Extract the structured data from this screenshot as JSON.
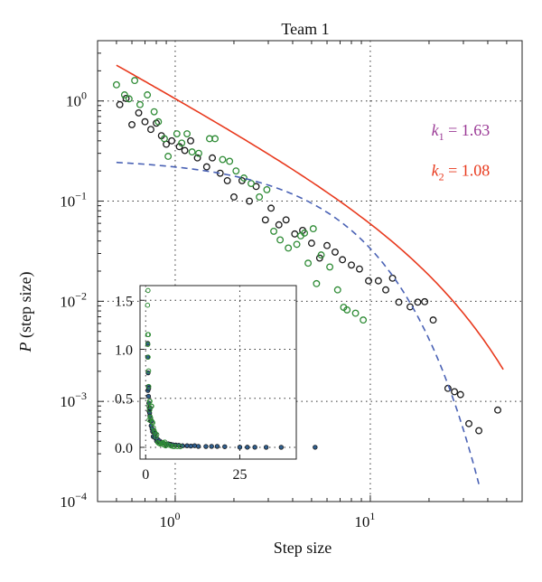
{
  "chart_data": {
    "type": "scatter",
    "title": "Team 1",
    "xlabel": "Step size",
    "ylabel_italic": "P",
    "ylabel_rest": " (step size)",
    "xscale": "log",
    "yscale": "log",
    "xlim": [
      0.4,
      60
    ],
    "ylim": [
      0.0001,
      4
    ],
    "grid": "dotted at major ticks",
    "x_ticks": [
      {
        "value": 1,
        "base": "10",
        "exp": "0"
      },
      {
        "value": 10,
        "base": "10",
        "exp": "1"
      }
    ],
    "y_ticks": [
      {
        "value": 1,
        "base": "10",
        "exp": "0"
      },
      {
        "value": 0.1,
        "base": "10",
        "exp": "−1"
      },
      {
        "value": 0.01,
        "base": "10",
        "exp": "−2"
      },
      {
        "value": 0.001,
        "base": "10",
        "exp": "−3"
      },
      {
        "value": 0.0001,
        "base": "10",
        "exp": "−4"
      }
    ],
    "annotations": [
      {
        "k": "k",
        "sub": "1",
        "rest": " = 1.63",
        "color": "#9b3a96",
        "anchor_x": 41,
        "anchor_y": 0.45
      },
      {
        "k": "k",
        "sub": "2",
        "rest": " = 1.08",
        "color": "#e8391d",
        "anchor_x": 41,
        "anchor_y": 0.18
      }
    ],
    "series": [
      {
        "marker": "open-circle",
        "color": "#1a1a1a",
        "points": [
          [
            0.52,
            0.92
          ],
          [
            0.56,
            1.06
          ],
          [
            0.6,
            0.58
          ],
          [
            0.65,
            0.76
          ],
          [
            0.7,
            0.62
          ],
          [
            0.75,
            0.52
          ],
          [
            0.8,
            0.6
          ],
          [
            0.85,
            0.45
          ],
          [
            0.9,
            0.37
          ],
          [
            0.96,
            0.4
          ],
          [
            1.05,
            0.35
          ],
          [
            1.12,
            0.32
          ],
          [
            1.2,
            0.4
          ],
          [
            1.3,
            0.27
          ],
          [
            1.45,
            0.22
          ],
          [
            1.55,
            0.27
          ],
          [
            1.7,
            0.19
          ],
          [
            1.85,
            0.16
          ],
          [
            2.0,
            0.11
          ],
          [
            2.2,
            0.16
          ],
          [
            2.4,
            0.1
          ],
          [
            2.6,
            0.14
          ],
          [
            2.9,
            0.065
          ],
          [
            3.1,
            0.085
          ],
          [
            3.4,
            0.058
          ],
          [
            3.7,
            0.065
          ],
          [
            4.1,
            0.047
          ],
          [
            4.5,
            0.051
          ],
          [
            5.0,
            0.038
          ],
          [
            5.5,
            0.027
          ],
          [
            6.0,
            0.036
          ],
          [
            6.6,
            0.031
          ],
          [
            7.2,
            0.026
          ],
          [
            8.0,
            0.023
          ],
          [
            8.8,
            0.021
          ],
          [
            9.8,
            0.016
          ],
          [
            11.0,
            0.016
          ],
          [
            12.0,
            0.013
          ],
          [
            13.0,
            0.017
          ],
          [
            14.0,
            0.0098
          ],
          [
            16.0,
            0.0088
          ],
          [
            17.5,
            0.0098
          ],
          [
            19.0,
            0.0099
          ],
          [
            21.0,
            0.0065
          ],
          [
            25.0,
            0.00135
          ],
          [
            27.0,
            0.00125
          ],
          [
            29.0,
            0.00117
          ],
          [
            32.0,
            0.0006
          ],
          [
            36.0,
            0.00051
          ],
          [
            45.0,
            0.00082
          ]
        ]
      },
      {
        "marker": "open-circle",
        "color": "#2e8b35",
        "points": [
          [
            0.5,
            1.45
          ],
          [
            0.55,
            1.15
          ],
          [
            0.58,
            1.05
          ],
          [
            0.62,
            1.6
          ],
          [
            0.66,
            0.92
          ],
          [
            0.72,
            1.15
          ],
          [
            0.78,
            0.78
          ],
          [
            0.82,
            0.62
          ],
          [
            0.88,
            0.42
          ],
          [
            0.92,
            0.28
          ],
          [
            1.02,
            0.47
          ],
          [
            1.08,
            0.38
          ],
          [
            1.15,
            0.47
          ],
          [
            1.22,
            0.31
          ],
          [
            1.32,
            0.3
          ],
          [
            1.5,
            0.42
          ],
          [
            1.6,
            0.42
          ],
          [
            1.75,
            0.26
          ],
          [
            1.9,
            0.25
          ],
          [
            2.05,
            0.2
          ],
          [
            2.25,
            0.17
          ],
          [
            2.45,
            0.15
          ],
          [
            2.7,
            0.11
          ],
          [
            2.95,
            0.13
          ],
          [
            3.2,
            0.05
          ],
          [
            3.45,
            0.041
          ],
          [
            3.8,
            0.034
          ],
          [
            4.2,
            0.037
          ],
          [
            4.6,
            0.048
          ],
          [
            5.1,
            0.053
          ],
          [
            5.6,
            0.029
          ],
          [
            6.2,
            0.022
          ],
          [
            5.3,
            0.015
          ],
          [
            6.8,
            0.013
          ],
          [
            7.3,
            0.0087
          ],
          [
            7.6,
            0.0082
          ],
          [
            8.4,
            0.0076
          ],
          [
            9.2,
            0.0065
          ],
          [
            4.8,
            0.024
          ],
          [
            4.4,
            0.045
          ]
        ]
      }
    ],
    "fits": [
      {
        "name": "k2",
        "style": "solid",
        "color": "#e8391d",
        "x_range": [
          0.5,
          48
        ],
        "form": "power-law with exponential cutoff"
      },
      {
        "name": "k1",
        "style": "dashed",
        "color": "#4a62b5",
        "x_range": [
          0.5,
          36
        ],
        "form": "exponential"
      }
    ],
    "inset": {
      "xscale": "linear",
      "yscale": "linear",
      "xlim": [
        -1.5,
        40
      ],
      "ylim": [
        -0.12,
        1.65
      ],
      "x_ticks": [
        0,
        25
      ],
      "y_ticks": [
        0.0,
        0.5,
        1.0,
        1.5
      ],
      "x_tick_labels": [
        "0",
        "25"
      ],
      "y_tick_labels": [
        "0.0",
        "0.5",
        "1.0",
        "1.5"
      ]
    }
  }
}
